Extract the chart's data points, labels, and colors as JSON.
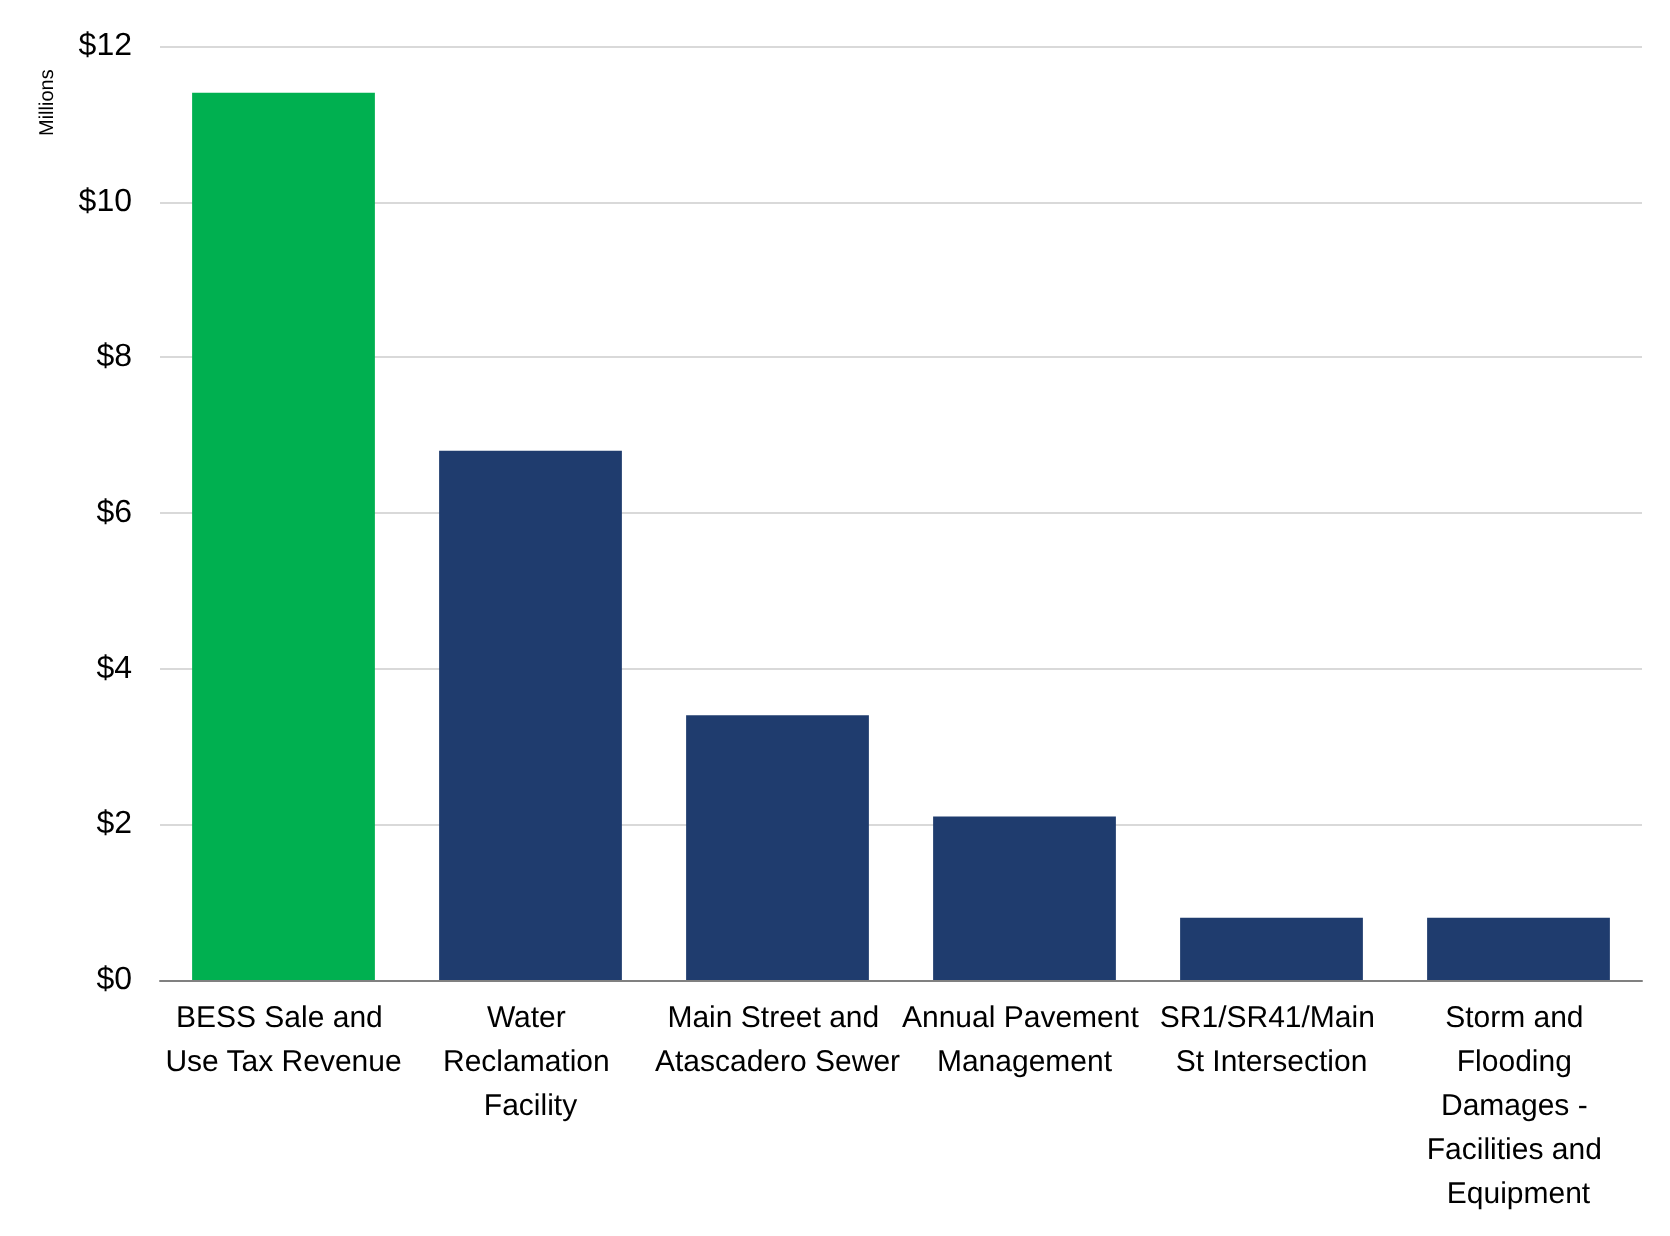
{
  "chart_data": {
    "type": "bar",
    "ylabel": "Millions",
    "categories": [
      "BESS Sale and Use Tax Revenue",
      "Water Reclamation Facility",
      "Main Street and Atascadero Sewer",
      "Annual Pavement Management",
      "SR1/SR41/Main St Intersection",
      "Storm and Flooding Damages - Facilities and Equipment"
    ],
    "values": [
      11.4,
      6.8,
      3.4,
      2.1,
      0.8,
      0.8
    ],
    "colors": [
      "#00b050",
      "#1f3c6e",
      "#1f3c6e",
      "#1f3c6e",
      "#1f3c6e",
      "#1f3c6e"
    ],
    "ylim": [
      0,
      12
    ],
    "yticks": [
      {
        "value": 0,
        "label": "$0"
      },
      {
        "value": 2,
        "label": "$2"
      },
      {
        "value": 4,
        "label": "$4"
      },
      {
        "value": 6,
        "label": "$6"
      },
      {
        "value": 8,
        "label": "$8"
      },
      {
        "value": 10,
        "label": "$10"
      },
      {
        "value": 12,
        "label": "$12"
      }
    ],
    "grid": "y"
  }
}
